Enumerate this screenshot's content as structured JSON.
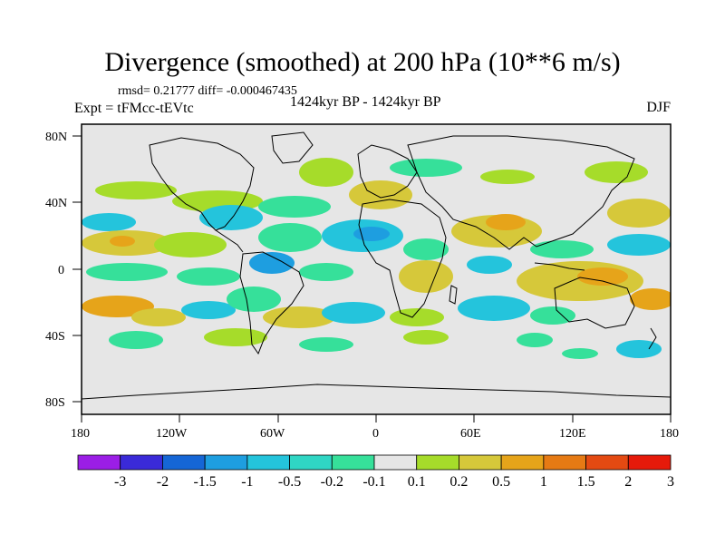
{
  "header": {
    "title": "Divergence (smoothed) at 200 hPa (10**6 m/s)",
    "stats": "rmsd= 0.21777 diff= -0.000467435",
    "experiment": "Expt = tFMcc-tEVtc",
    "period": "1424kyr BP - 1424kyr BP",
    "season": "DJF"
  },
  "axes": {
    "y_ticks": [
      "80N",
      "40N",
      "0",
      "40S",
      "80S"
    ],
    "x_ticks": [
      "180",
      "120W",
      "60W",
      "0",
      "60E",
      "120E",
      "180"
    ]
  },
  "colorbar": {
    "labels": [
      "-3",
      "-2",
      "-1.5",
      "-1",
      "-0.5",
      "-0.2",
      "-0.1",
      "0.1",
      "0.2",
      "0.5",
      "1",
      "1.5",
      "2",
      "3"
    ],
    "colors": [
      "#9b1ee6",
      "#3a2ad8",
      "#1566d6",
      "#1e9ee0",
      "#24c4dc",
      "#2fd6c4",
      "#36e09a",
      "#e6e6e6",
      "#a6dc2a",
      "#d6c83a",
      "#e6a41a",
      "#e67a14",
      "#e44a12",
      "#e61a0a"
    ]
  },
  "map_palette": {
    "background": "#e6e6e6",
    "blue": "#1e9ee0",
    "cyan": "#24c4dc",
    "teal": "#36e09a",
    "green": "#a6dc2a",
    "yellow": "#d6c83a",
    "orange": "#e6a41a",
    "coast": "#000000"
  }
}
